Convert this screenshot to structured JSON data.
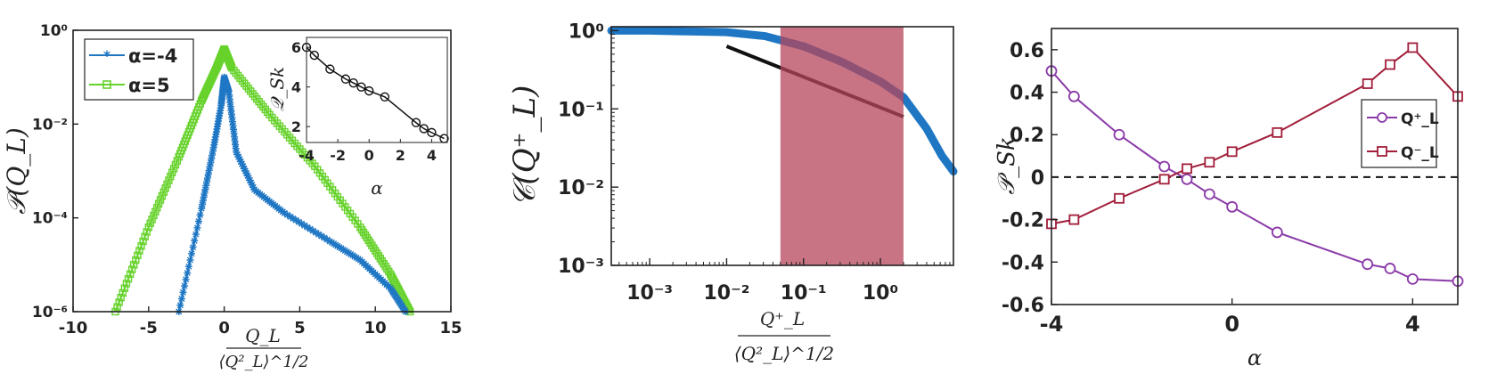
{
  "colors": {
    "blue": "#1f77c4",
    "green": "#66d22b",
    "purple": "#8a3aa8",
    "red": "#a11d3a",
    "shade": "#b5455b",
    "black": "#111111"
  },
  "chart_data": [
    {
      "type": "scatter",
      "panel": "left",
      "ylabel": "𝒫(Q_L)",
      "xlabel_num": "Q_L",
      "xlabel_den": "⟨Q²_L⟩^1/2",
      "xlim": [
        -10,
        15
      ],
      "ylim_log10": [
        -6,
        0
      ],
      "yscale": "log",
      "xticks": [
        "-10",
        "-5",
        "0",
        "5",
        "10",
        "15"
      ],
      "yticks": [
        "10⁰",
        "10⁻²",
        "10⁻⁴",
        "10⁻⁶"
      ],
      "legend": [
        "α=-4",
        "α=5"
      ],
      "series": [
        {
          "name": "α=-4",
          "points": [
            [
              -3.0,
              -6
            ],
            [
              -1.5,
              -3.8
            ],
            [
              -0.7,
              -2.5
            ],
            [
              -0.2,
              -1.6
            ],
            [
              0.0,
              -1.0
            ],
            [
              0.3,
              -1.3
            ],
            [
              0.8,
              -2.6
            ],
            [
              2.0,
              -3.4
            ],
            [
              4.0,
              -3.9
            ],
            [
              7.0,
              -4.5
            ],
            [
              9.0,
              -4.9
            ],
            [
              11.0,
              -5.5
            ],
            [
              12.0,
              -6
            ]
          ]
        },
        {
          "name": "α=5",
          "points": [
            [
              -7.2,
              -6
            ],
            [
              -5.0,
              -4.2
            ],
            [
              -3.0,
              -2.7
            ],
            [
              -1.5,
              -1.5
            ],
            [
              -0.5,
              -0.8
            ],
            [
              0.0,
              -0.4
            ],
            [
              0.5,
              -0.8
            ],
            [
              3.0,
              -1.8
            ],
            [
              6.0,
              -2.9
            ],
            [
              9.0,
              -4.2
            ],
            [
              11.0,
              -5.2
            ],
            [
              12.3,
              -6
            ]
          ]
        }
      ],
      "inset": {
        "ylabel": "𝒬_Sk",
        "xlabel": "α",
        "xlim": [
          -4,
          5
        ],
        "ylim": [
          1.2,
          6.5
        ],
        "xticks": [
          "-4",
          "-2",
          "0",
          "2",
          "4"
        ],
        "yticks": [
          "2",
          "4",
          "6"
        ],
        "points": [
          [
            -4.0,
            6.0
          ],
          [
            -3.5,
            5.6
          ],
          [
            -2.5,
            4.9
          ],
          [
            -1.5,
            4.4
          ],
          [
            -1.0,
            4.2
          ],
          [
            -0.5,
            4.0
          ],
          [
            0.0,
            3.8
          ],
          [
            1.0,
            3.5
          ],
          [
            3.0,
            2.2
          ],
          [
            3.5,
            1.9
          ],
          [
            4.0,
            1.7
          ],
          [
            4.8,
            1.4
          ]
        ]
      }
    },
    {
      "type": "line",
      "panel": "middle",
      "ylabel": "𝒞(Q⁺_L)",
      "xlabel_num": "Q⁺_L",
      "xlabel_den": "⟨Q²_L⟩^1/2",
      "xscale": "log",
      "yscale": "log",
      "xlim_log10": [
        -3.5,
        0.95
      ],
      "ylim_log10": [
        -3,
        0.05
      ],
      "xticks": [
        "10⁻³",
        "10⁻²",
        "10⁻¹",
        "10⁰"
      ],
      "yticks": [
        "10⁰",
        "10⁻¹",
        "10⁻²",
        "10⁻³"
      ],
      "shaded_band_log10": [
        -1.3,
        0.3
      ],
      "series": [
        {
          "name": "",
          "points": [
            [
              -3.5,
              0.0
            ],
            [
              -3.0,
              0.0
            ],
            [
              -2.5,
              -0.01
            ],
            [
              -2.0,
              -0.02
            ],
            [
              -1.5,
              -0.07
            ],
            [
              -1.0,
              -0.2
            ],
            [
              -0.5,
              -0.4
            ],
            [
              0.0,
              -0.65
            ],
            [
              0.3,
              -0.85
            ],
            [
              0.6,
              -1.25
            ],
            [
              0.8,
              -1.6
            ],
            [
              0.95,
              -1.8
            ]
          ]
        }
      ],
      "reference_line_log10": [
        [
          -2.0,
          -0.2
        ],
        [
          0.3,
          -1.1
        ]
      ]
    },
    {
      "type": "line",
      "panel": "right",
      "ylabel": "𝒫_Sk",
      "xlabel": "α",
      "xlim": [
        -4,
        5
      ],
      "ylim": [
        -0.6,
        0.7
      ],
      "xticks": [
        "-4",
        "0",
        "4"
      ],
      "yticks": [
        "0.6",
        "0.4",
        "0.2",
        "0",
        "-0.2",
        "-0.4",
        "-0.6"
      ],
      "legend": [
        "Q⁺_L",
        "Q⁻_L"
      ],
      "series": [
        {
          "name": "Q⁺_L",
          "x": [
            -4.0,
            -3.5,
            -2.5,
            -1.5,
            -1.0,
            -0.5,
            0.0,
            1.0,
            3.0,
            3.5,
            4.0,
            5.0
          ],
          "values": [
            0.5,
            0.38,
            0.2,
            0.05,
            -0.01,
            -0.08,
            -0.14,
            -0.26,
            -0.41,
            -0.43,
            -0.48,
            -0.49
          ]
        },
        {
          "name": "Q⁻_L",
          "x": [
            -4.0,
            -3.5,
            -2.5,
            -1.5,
            -1.0,
            -0.5,
            0.0,
            1.0,
            3.0,
            3.5,
            4.0,
            5.0
          ],
          "values": [
            -0.22,
            -0.2,
            -0.1,
            -0.01,
            0.04,
            0.07,
            0.12,
            0.21,
            0.44,
            0.53,
            0.61,
            0.38
          ]
        }
      ]
    }
  ]
}
